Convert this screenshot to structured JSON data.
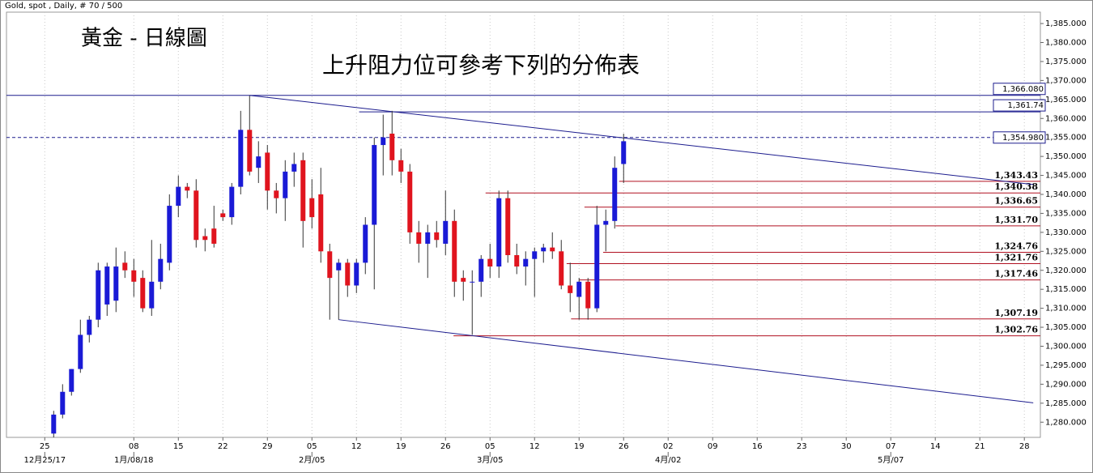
{
  "chart_data": {
    "type": "candlestick",
    "header": "Gold, spot , Daily, # 70 / 500",
    "title": "黃金 - 日線圖",
    "subtitle": "上升阻力位可參考下列的分佈表",
    "up_color": "#1a1ad6",
    "down_color": "#e0141e",
    "x": [
      1,
      2,
      3,
      4,
      5,
      6,
      7,
      8,
      9,
      10,
      11,
      12,
      13,
      14,
      15,
      16,
      17,
      18,
      19,
      20,
      21,
      22,
      23,
      24,
      25,
      26,
      27,
      28,
      29,
      30,
      31,
      32,
      33,
      34,
      35,
      36,
      37,
      38,
      39,
      40,
      41,
      42,
      43,
      44,
      45,
      46,
      47,
      48,
      49,
      50,
      51,
      52,
      53,
      54,
      55,
      56,
      57,
      58,
      59,
      60,
      61,
      62,
      63,
      64,
      65
    ],
    "open": [
      1277,
      1282,
      1288,
      1294,
      1303,
      1307,
      1311,
      1312,
      1322,
      1320,
      1318,
      1310,
      1317,
      1322,
      1337,
      1342,
      1341,
      1329,
      1331,
      1335,
      1334,
      1342,
      1357,
      1347,
      1351,
      1341,
      1339,
      1346,
      1349,
      1339,
      1340,
      1325,
      1320,
      1322,
      1316,
      1322,
      1332,
      1353,
      1356,
      1349,
      1346,
      1330,
      1327,
      1330,
      1327,
      1333,
      1318,
      1317,
      1317,
      1323,
      1321,
      1339,
      1324,
      1321,
      1323,
      1325,
      1326,
      1325,
      1316,
      1313,
      1317,
      1310,
      1332,
      1333,
      1348
    ],
    "high": [
      1283,
      1290,
      1294,
      1307,
      1308,
      1322,
      1322,
      1326,
      1325,
      1323,
      1320,
      1328,
      1327,
      1340,
      1345,
      1343,
      1344,
      1331,
      1337,
      1336,
      1343,
      1362,
      1366,
      1354,
      1353,
      1343,
      1349,
      1351,
      1351,
      1344,
      1347,
      1327,
      1323,
      1323,
      1323,
      1334,
      1355,
      1361,
      1362,
      1352,
      1348,
      1333,
      1332,
      1333,
      1341,
      1336,
      1320,
      1320,
      1324,
      1327,
      1341,
      1341,
      1327,
      1325,
      1326,
      1327,
      1330,
      1328,
      1322,
      1318,
      1318,
      1337,
      1336,
      1350,
      1356
    ],
    "low": [
      1276,
      1281,
      1287,
      1293,
      1301,
      1305,
      1308,
      1309,
      1318,
      1313,
      1309,
      1308,
      1315,
      1320,
      1334,
      1339,
      1326,
      1325,
      1326,
      1333,
      1332,
      1340,
      1345,
      1343,
      1336,
      1335,
      1333,
      1342,
      1326,
      1331,
      1322,
      1307,
      1307,
      1313,
      1314,
      1319,
      1315,
      1345,
      1345,
      1343,
      1327,
      1322,
      1318,
      1326,
      1324,
      1313,
      1312,
      1303,
      1313,
      1318,
      1318,
      1322,
      1319,
      1316,
      1313,
      1322,
      1323,
      1315,
      1309,
      1307,
      1307,
      1309,
      1325,
      1331,
      1343
    ],
    "close": [
      1282,
      1288,
      1294,
      1303,
      1307,
      1320,
      1321,
      1321,
      1320,
      1317,
      1310,
      1317,
      1323,
      1337,
      1342,
      1341,
      1328,
      1328,
      1327,
      1334,
      1342,
      1357,
      1346,
      1350,
      1341,
      1339,
      1346,
      1348,
      1333,
      1334,
      1325,
      1318,
      1322,
      1316,
      1322,
      1332,
      1353,
      1355,
      1349,
      1346,
      1330,
      1327,
      1330,
      1328,
      1333,
      1317,
      1317,
      1317,
      1323,
      1321,
      1339,
      1324,
      1321,
      1323,
      1325,
      1326,
      1325,
      1316,
      1314,
      1317,
      1310,
      1332,
      1333,
      1347,
      1354
    ],
    "xlim": [
      -4.3,
      111.8
    ],
    "ylim": [
      1276,
      1388
    ],
    "grid": true,
    "xticks": [
      {
        "value": 0,
        "label": "25"
      },
      {
        "value": 10,
        "label": "08"
      },
      {
        "value": 15,
        "label": "15"
      },
      {
        "value": 20,
        "label": "22"
      },
      {
        "value": 25,
        "label": "29"
      },
      {
        "value": 30,
        "label": "05"
      },
      {
        "value": 35,
        "label": "12"
      },
      {
        "value": 40,
        "label": "19"
      },
      {
        "value": 45,
        "label": "26"
      },
      {
        "value": 50,
        "label": "05"
      },
      {
        "value": 55,
        "label": "12"
      },
      {
        "value": 60,
        "label": "19"
      },
      {
        "value": 65,
        "label": "26"
      },
      {
        "value": 70,
        "label": "02"
      },
      {
        "value": 75,
        "label": "09"
      },
      {
        "value": 80,
        "label": "16"
      },
      {
        "value": 85,
        "label": "23"
      },
      {
        "value": 90,
        "label": "30"
      },
      {
        "value": 95,
        "label": "07"
      },
      {
        "value": 100,
        "label": "14"
      },
      {
        "value": 105,
        "label": "21"
      },
      {
        "value": 110,
        "label": "28"
      }
    ],
    "xticks_major": [
      {
        "value": 0,
        "label": "12月25/17"
      },
      {
        "value": 10,
        "label": "1月/08/18"
      },
      {
        "value": 30,
        "label": "2月/05"
      },
      {
        "value": 50,
        "label": "3月/05"
      },
      {
        "value": 70,
        "label": "4月/02"
      },
      {
        "value": 95,
        "label": "5月/07"
      }
    ],
    "yticks": [
      {
        "value": 1280,
        "label": "1,280.000"
      },
      {
        "value": 1285,
        "label": "1,285.000"
      },
      {
        "value": 1290,
        "label": "1,290.000"
      },
      {
        "value": 1295,
        "label": "1,295.000"
      },
      {
        "value": 1300,
        "label": "1,300.000"
      },
      {
        "value": 1305,
        "label": "1,305.000"
      },
      {
        "value": 1310,
        "label": "1,310.000"
      },
      {
        "value": 1315,
        "label": "1,315.000"
      },
      {
        "value": 1320,
        "label": "1,320.000"
      },
      {
        "value": 1325,
        "label": "1,325.000"
      },
      {
        "value": 1330,
        "label": "1,330.000"
      },
      {
        "value": 1335,
        "label": "1,335.000"
      },
      {
        "value": 1340,
        "label": "1,340.000"
      },
      {
        "value": 1345,
        "label": "1,345.000"
      },
      {
        "value": 1350,
        "label": "1,350.000"
      },
      {
        "value": 1355,
        "label": "1,355.000"
      },
      {
        "value": 1360,
        "label": "1,360.000"
      },
      {
        "value": 1365,
        "label": "1,365.000"
      },
      {
        "value": 1370,
        "label": "1,370.000"
      },
      {
        "value": 1375,
        "label": "1,375.000"
      },
      {
        "value": 1380,
        "label": "1,380.000"
      },
      {
        "value": 1385,
        "label": "1,385.000"
      }
    ],
    "trendlines": [
      {
        "x": [
          23,
          111
        ],
        "values": [
          1366.08,
          1342.6
        ],
        "color": "#1c1c8e"
      },
      {
        "x": [
          33,
          111
        ],
        "values": [
          1307,
          1285.1
        ],
        "color": "#1c1c8e"
      }
    ],
    "levels": [
      {
        "value": 1366.08,
        "label": "1,366.080",
        "color": "#1c1c8e",
        "x_start": -4.3,
        "placement": "axis"
      },
      {
        "value": 1361.74,
        "label": "1,361.74",
        "color": "#1c1c8e",
        "x_start": 35.3,
        "placement": "axis"
      },
      {
        "value": 1354.98,
        "label": "1,354.980",
        "color": "#1c1c8e",
        "x_start": -4.3,
        "placement": "axis",
        "dashed": true
      },
      {
        "value": 1343.43,
        "label": "1,343.43",
        "color": "#b01020",
        "x_start": 64.5,
        "placement": "inside"
      },
      {
        "value": 1340.38,
        "label": "1,340.38",
        "color": "#b01020",
        "x_start": 49.5,
        "placement": "inside"
      },
      {
        "value": 1336.65,
        "label": "1,336.65",
        "color": "#b01020",
        "x_start": 60.6,
        "placement": "inside"
      },
      {
        "value": 1331.7,
        "label": "1,331.70",
        "color": "#b01020",
        "x_start": 64.1,
        "placement": "inside"
      },
      {
        "value": 1324.76,
        "label": "1,324.76",
        "color": "#b01020",
        "x_start": 62.7,
        "placement": "inside"
      },
      {
        "value": 1321.76,
        "label": "1,321.76",
        "color": "#b01020",
        "x_start": 58.6,
        "placement": "inside"
      },
      {
        "value": 1317.46,
        "label": "1,317.46",
        "color": "#b01020",
        "x_start": 60.0,
        "placement": "inside"
      },
      {
        "value": 1307.19,
        "label": "1,307.19",
        "color": "#b01020",
        "x_start": 59.1,
        "placement": "inside"
      },
      {
        "value": 1302.76,
        "label": "1,302.76",
        "color": "#b01020",
        "x_start": 45.9,
        "placement": "inside"
      }
    ]
  }
}
